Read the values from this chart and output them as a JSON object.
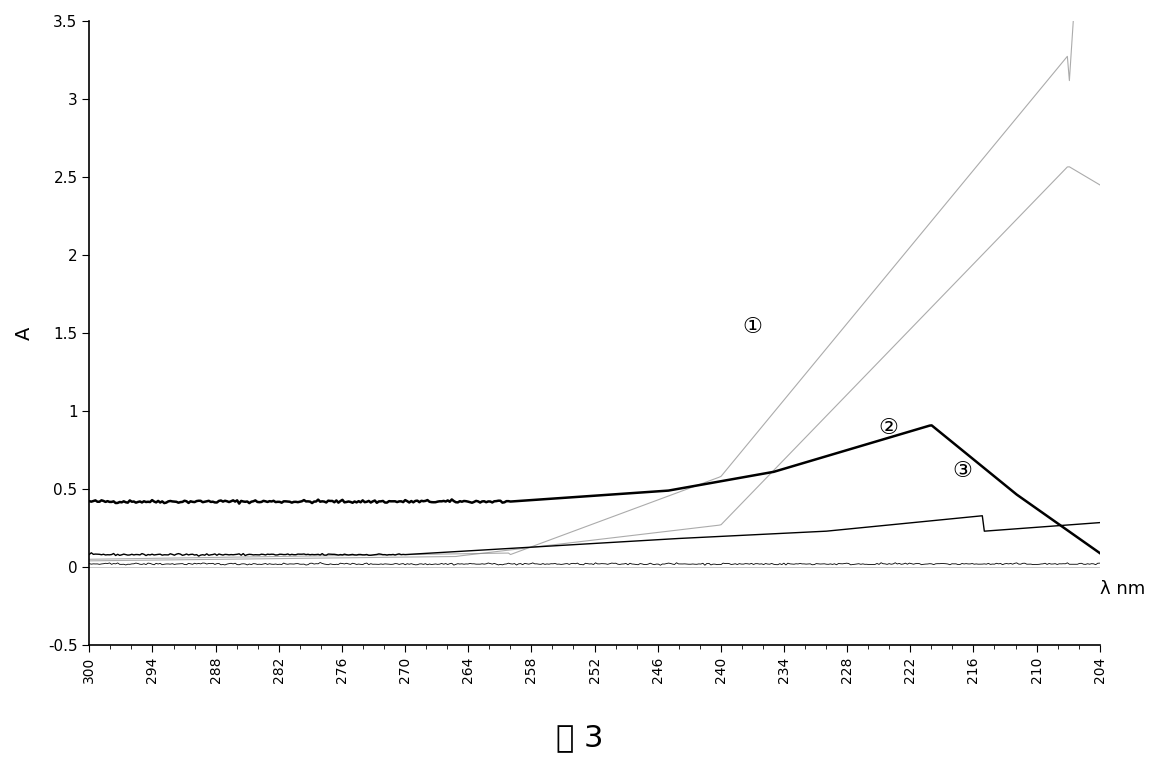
{
  "title": "图 3",
  "xlabel": "λ nm",
  "ylabel": "A",
  "xlim": [
    204,
    300
  ],
  "ylim": [
    -0.5,
    3.5
  ],
  "yticks": [
    -0.5,
    0,
    0.5,
    1,
    1.5,
    2,
    2.5,
    3,
    3.5
  ],
  "xticks": [
    300,
    294,
    288,
    282,
    276,
    270,
    264,
    258,
    252,
    246,
    240,
    234,
    228,
    222,
    216,
    210,
    204
  ],
  "bg_color": "#ffffff",
  "curve1_color": "#888888",
  "curve2_color": "#888888",
  "curve3_color": "#000000",
  "curve4_color": "#000000",
  "curve5_color": "#000000"
}
